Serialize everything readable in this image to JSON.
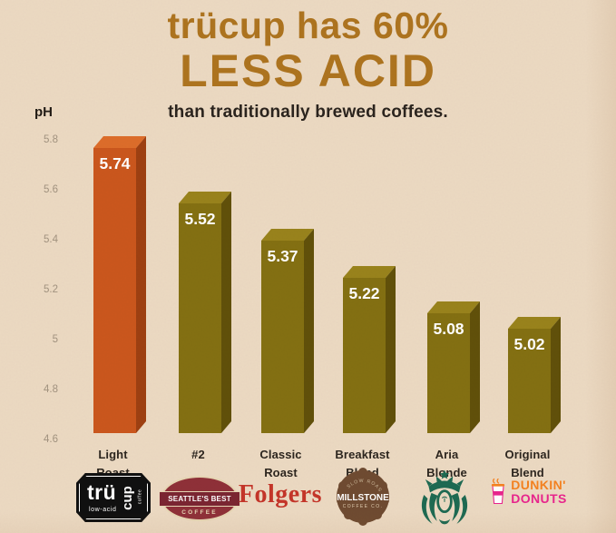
{
  "header": {
    "title_line1": "trücup has 60%",
    "title_line2": "LESS ACID",
    "subtitle": "than traditionally brewed coffees."
  },
  "axis": {
    "label": "pH",
    "tick_labels": [
      "5.8",
      "5.6",
      "5.4",
      "5.2",
      "5",
      "4.8",
      "4.6"
    ]
  },
  "chart_data": {
    "type": "bar",
    "title": "trücup has 60% LESS ACID than traditionally brewed coffees.",
    "xlabel": "",
    "ylabel": "pH",
    "ylim": [
      4.6,
      5.8
    ],
    "yticks": [
      5.8,
      5.6,
      5.4,
      5.2,
      5.0,
      4.8,
      4.6
    ],
    "grid": false,
    "legend": "none",
    "categories": [
      "Light Roast",
      "#2",
      "Classic Roast",
      "Breakfast Blend",
      "Aria Blonde",
      "Original Blend"
    ],
    "brands": [
      "trücup low-acid coffee",
      "Seattle's Best Coffee",
      "Folgers",
      "Millstone Coffee Co.",
      "Starbucks",
      "Dunkin' Donuts"
    ],
    "values": [
      5.74,
      5.52,
      5.37,
      5.22,
      5.08,
      5.02
    ],
    "value_labels": [
      "5.74",
      "5.52",
      "5.37",
      "5.22",
      "5.08",
      "5.02"
    ],
    "bar_colors": {
      "highlight": {
        "front": "#cb571d",
        "side": "#9e4012",
        "top": "#dd6d2a"
      },
      "default": {
        "front": "#847012",
        "side": "#61500a",
        "top": "#99831c"
      }
    },
    "highlight_index": 0
  },
  "logos": {
    "trucup": {
      "word_top": "trü",
      "word_sub": "low-acid",
      "word_side": "cup",
      "word_side_sub": "coffee"
    },
    "seattles_best": {
      "name": "SEATTLE'S BEST",
      "sub": "COFFEE"
    },
    "folgers": {
      "name": "Folgers"
    },
    "millstone": {
      "arc_top": "SLOW ROASTED",
      "name": "MILLSTONE",
      "sub": "COFFEE CO."
    },
    "dunkin": {
      "line1": "DUNKIN'",
      "line2": "DONUTS"
    }
  },
  "colors": {
    "background": "#ecdac3",
    "title_brown": "#ae741f",
    "dark_text": "#2b241e",
    "tick_text": "#a29380",
    "value_text": "#ffffff",
    "folgers_red": "#c53529",
    "seattles_red": "#8f3038",
    "millstone_brown": "#6f4b31",
    "starbucks_green": "#1e6a52",
    "dunkin_orange": "#f5821f",
    "dunkin_pink": "#e9258d"
  }
}
